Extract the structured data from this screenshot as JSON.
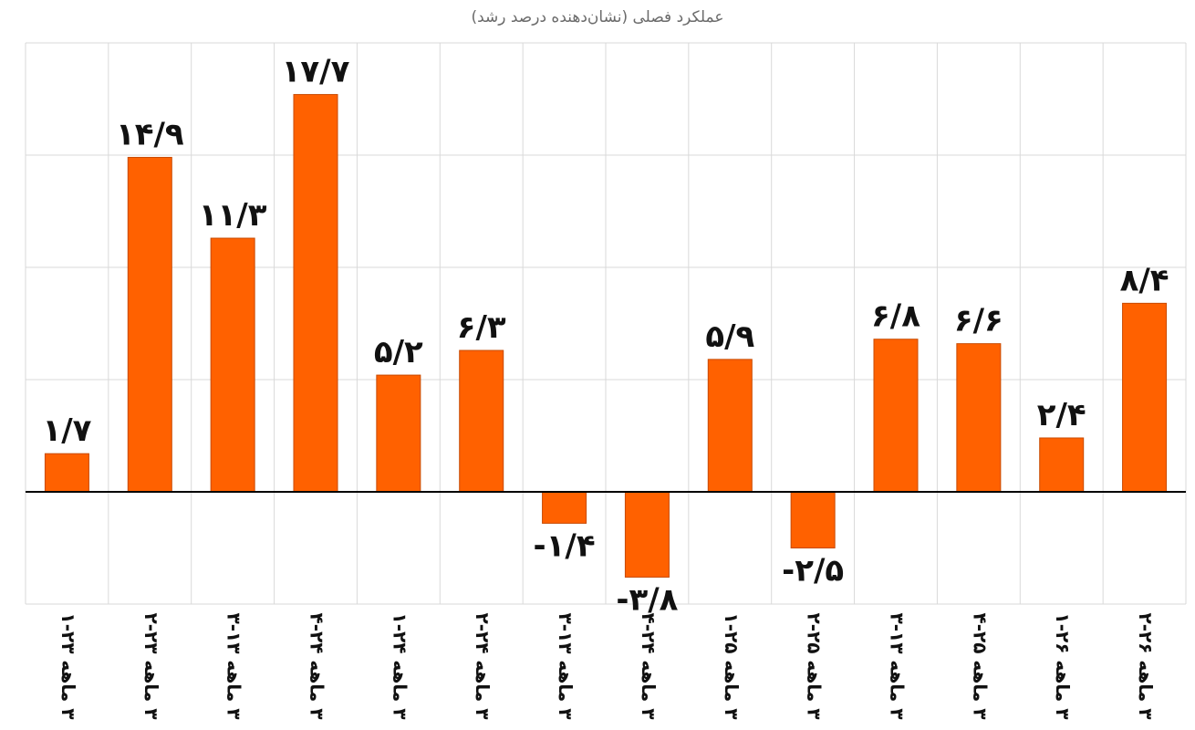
{
  "chart_data": {
    "type": "bar",
    "title": "عملکرد فصلی (نشان‌دهنده درصد رشد)",
    "categories": [
      "۳ ماهه ۲۳-۱",
      "۳ ماهه ۲۳-۲",
      "۳ ماهه ۱۳-۳",
      "۳ ماهه ۲۴-۴",
      "۳ ماهه ۲۴-۱",
      "۳ ماهه ۲۴-۲",
      "۳ ماهه ۱۳-۳",
      "۳ ماهه ۲۴-۴",
      "۳ ماهه ۲۵-۱",
      "۳ ماهه ۲۵-۲",
      "۳ ماهه ۱۳-۳",
      "۳ ماهه ۲۵-۴",
      "۳ ماهه ۲۶-۱",
      "۳ ماهه ۲۶-۲"
    ],
    "values": [
      1.7,
      14.9,
      11.3,
      17.7,
      5.2,
      6.3,
      -1.4,
      -3.8,
      5.9,
      -2.5,
      6.8,
      6.6,
      2.4,
      8.4
    ],
    "value_labels": [
      "۱/۷",
      "۱۴/۹",
      "۱۱/۳",
      "۱۷/۷",
      "۵/۲",
      "۶/۳",
      "-۱/۴",
      "-۳/۸",
      "۵/۹",
      "-۲/۵",
      "۶/۸",
      "۶/۶",
      "۲/۴",
      "۸/۴"
    ],
    "ylim": [
      -5,
      20
    ],
    "grid": true,
    "legend": "none",
    "bar_color": "#ff6100",
    "bar_border_color": "#c84a00"
  }
}
